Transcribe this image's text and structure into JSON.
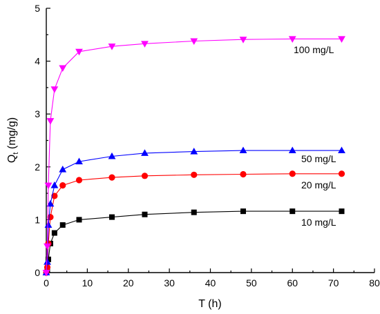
{
  "chart_data": {
    "type": "line",
    "title": "",
    "xlabel": "T (h)",
    "ylabel": {
      "main": "Q",
      "sub": "t",
      "rest": " (mg/g)"
    },
    "xlim": [
      0,
      80
    ],
    "ylim": [
      0,
      5
    ],
    "xticks": [
      "0",
      "10",
      "20",
      "30",
      "40",
      "50",
      "60",
      "70",
      "80"
    ],
    "yticks": [
      "0",
      "1",
      "2",
      "3",
      "4",
      "5"
    ],
    "grid": false,
    "series": [
      {
        "name": "10 mg/L",
        "marker": "square",
        "color": "#000000",
        "x": [
          0,
          0.25,
          0.5,
          1,
          2,
          4,
          8,
          16,
          24,
          36,
          48,
          60,
          72
        ],
        "y": [
          0,
          0.05,
          0.25,
          0.55,
          0.75,
          0.9,
          1.0,
          1.05,
          1.1,
          1.14,
          1.16,
          1.16,
          1.16
        ]
      },
      {
        "name": "20 mg/L",
        "marker": "circle",
        "color": "#ff0000",
        "x": [
          0,
          0.25,
          0.5,
          1,
          2,
          4,
          8,
          16,
          24,
          36,
          48,
          60,
          72
        ],
        "y": [
          0,
          0.1,
          0.55,
          1.05,
          1.45,
          1.65,
          1.75,
          1.8,
          1.83,
          1.85,
          1.86,
          1.87,
          1.87
        ]
      },
      {
        "name": "50 mg/L",
        "marker": "triangle-up",
        "color": "#0000ff",
        "x": [
          0,
          0.25,
          0.5,
          1,
          2,
          4,
          8,
          16,
          24,
          36,
          48,
          60,
          72
        ],
        "y": [
          0,
          0.2,
          0.9,
          1.3,
          1.65,
          1.95,
          2.1,
          2.2,
          2.26,
          2.29,
          2.31,
          2.31,
          2.31
        ]
      },
      {
        "name": "100 mg/L",
        "marker": "triangle-down",
        "color": "#ff00ff",
        "x": [
          0,
          0.25,
          0.5,
          1,
          2,
          4,
          8,
          16,
          24,
          36,
          48,
          60,
          72
        ],
        "y": [
          0,
          0.5,
          1.65,
          2.87,
          3.47,
          3.87,
          4.18,
          4.28,
          4.33,
          4.38,
          4.41,
          4.42,
          4.42
        ]
      }
    ]
  }
}
